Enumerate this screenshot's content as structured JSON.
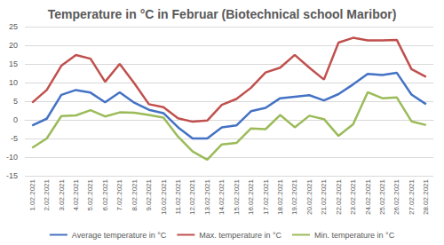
{
  "chart_data": {
    "type": "line",
    "title": "Temperature in °C in Februar (Biotechnical school Maribor)",
    "categories": [
      "1.02.2021",
      "2.02.2021",
      "3.02.2021",
      "4.02.2021",
      "5.02.2021",
      "6.02.2021",
      "7.02.2021",
      "8.02.2021",
      "9.02.2021",
      "10.02.2021",
      "11.02.2021",
      "12.02.2021",
      "13.02.2021",
      "14.02.2021",
      "15.02.2021",
      "16.02.2021",
      "17.02.2021",
      "18.02.2021",
      "19.02.2021",
      "20.02.2021",
      "21.02.2021",
      "22.02.2021",
      "23.02.2021",
      "24.02.2021",
      "25.02.2021",
      "26.02.2021",
      "27.02.2021",
      "28.02.2021"
    ],
    "series": [
      {
        "name": "Average temperature in °C",
        "color": "#4472c4",
        "values": [
          -1.5,
          0.3,
          6.7,
          8.0,
          7.3,
          4.7,
          7.4,
          4.6,
          2.7,
          1.8,
          -2.0,
          -5.0,
          -5.0,
          -2.0,
          -1.5,
          2.3,
          3.2,
          5.8,
          6.2,
          6.6,
          5.2,
          6.9,
          9.5,
          12.3,
          12.0,
          12.6,
          6.8,
          4.2
        ]
      },
      {
        "name": "Max. temperature in °C",
        "color": "#c0504d",
        "values": [
          4.6,
          8.0,
          14.5,
          17.4,
          16.4,
          10.2,
          15.0,
          9.8,
          4.2,
          3.4,
          0.4,
          -0.5,
          -0.2,
          4.0,
          5.6,
          8.6,
          12.7,
          14.0,
          17.4,
          14.0,
          10.8,
          20.7,
          22.0,
          21.3,
          21.3,
          21.4,
          13.6,
          11.5
        ]
      },
      {
        "name": "Min. temperature in °C",
        "color": "#9bbb59",
        "values": [
          -7.5,
          -5.0,
          1.0,
          1.2,
          2.6,
          0.9,
          2.0,
          1.9,
          1.3,
          0.6,
          -4.5,
          -8.5,
          -10.7,
          -6.6,
          -6.2,
          -2.3,
          -2.5,
          1.3,
          -2.0,
          1.1,
          0.2,
          -4.3,
          -1.2,
          7.4,
          5.8,
          6.0,
          -0.4,
          -1.4
        ]
      }
    ],
    "ylim": [
      -15,
      25
    ],
    "yticks": [
      -15,
      -10,
      -5,
      0,
      5,
      10,
      15,
      20,
      25
    ],
    "grid": true,
    "legend": "bottom",
    "marker": "none",
    "line_style": "solid"
  }
}
